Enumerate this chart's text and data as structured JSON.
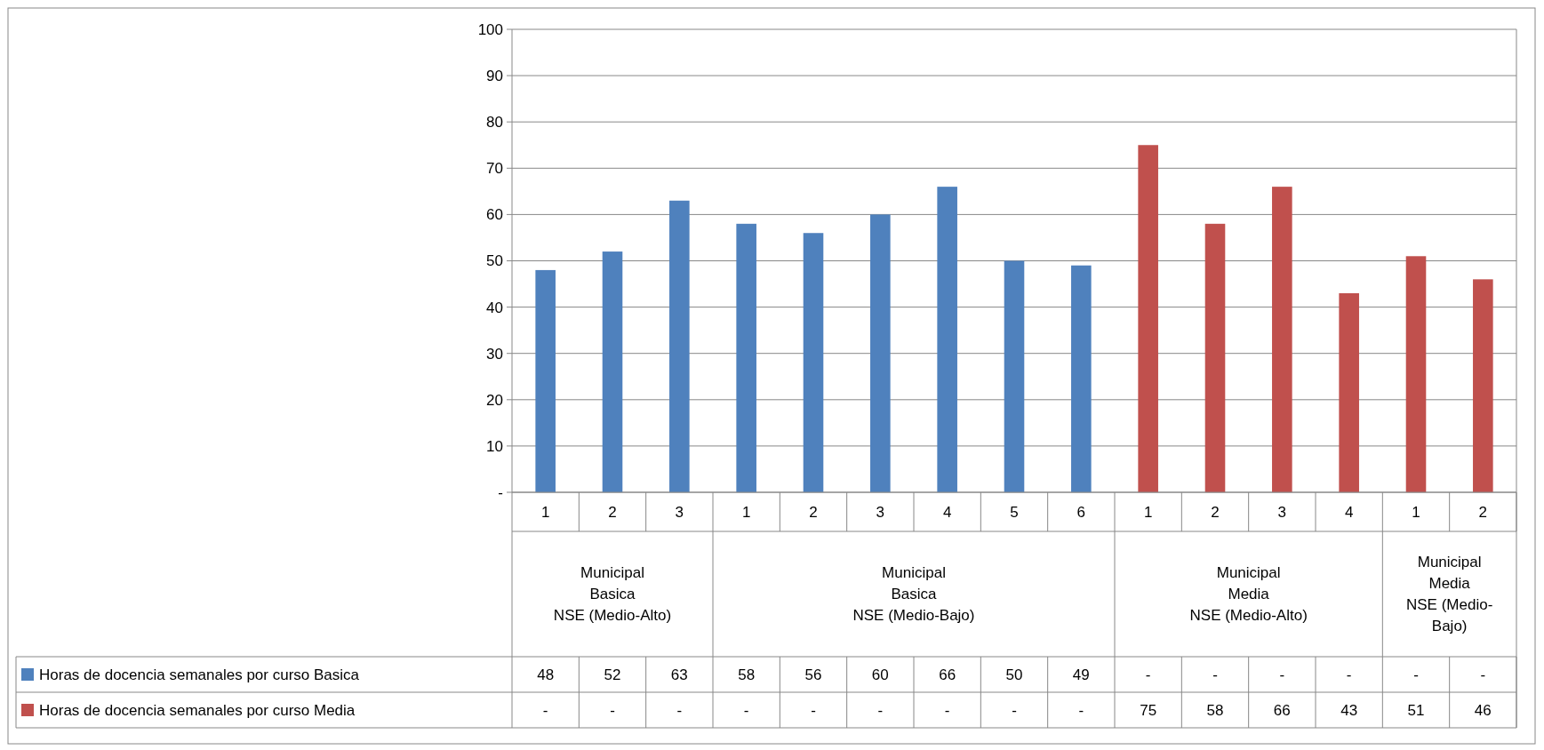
{
  "chart_data": {
    "type": "bar",
    "categories": [
      "1",
      "2",
      "3",
      "1",
      "2",
      "3",
      "4",
      "5",
      "6",
      "1",
      "2",
      "3",
      "4",
      "1",
      "2"
    ],
    "annotations": [
      "Municipal\nBasica\nNSE (Medio-Alto)",
      "Municipal\nBasica\nNSE (Medio-Bajo)",
      "Municipal\nMedia\nNSE (Medio-Alto)",
      "Municipal\nMedia\nNSE (Medio-\nBajo)"
    ],
    "series": [
      {
        "name": "Horas de docencia semanales por curso Basica",
        "color": "#4f81bd",
        "values": [
          48,
          52,
          63,
          58,
          56,
          60,
          66,
          50,
          49,
          null,
          null,
          null,
          null,
          null,
          null
        ],
        "value_labels": [
          "48",
          "52",
          "63",
          "58",
          "56",
          "60",
          "66",
          "50",
          "49",
          "-",
          "-",
          "-",
          "-",
          "-",
          "-"
        ]
      },
      {
        "name": "Horas de docencia semanales por curso Media",
        "color": "#c0504d",
        "values": [
          null,
          null,
          null,
          null,
          null,
          null,
          null,
          null,
          null,
          75,
          58,
          66,
          43,
          51,
          46
        ],
        "value_labels": [
          "-",
          "-",
          "-",
          "-",
          "-",
          "-",
          "-",
          "-",
          "-",
          "75",
          "58",
          "66",
          "43",
          "51",
          "46"
        ]
      }
    ],
    "ylim": [
      0,
      100
    ],
    "yticks": [
      {
        "value": 0,
        "label": "-"
      },
      10,
      20,
      30,
      40,
      50,
      60,
      70,
      80,
      90,
      100
    ],
    "grid": "y",
    "legend": "bottom"
  }
}
